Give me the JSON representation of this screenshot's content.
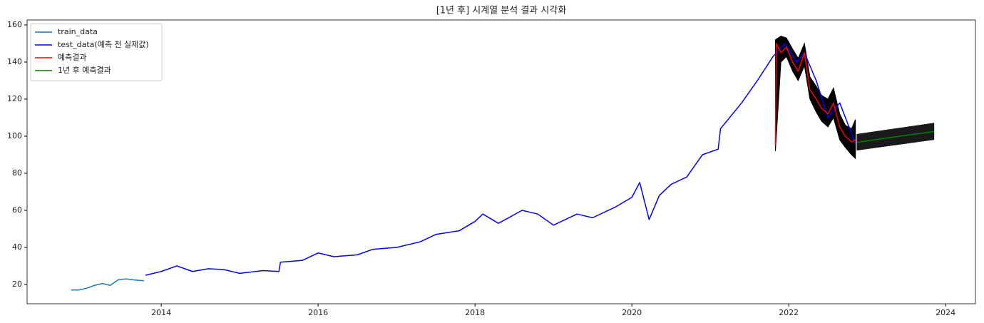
{
  "chart_data": {
    "type": "line",
    "title": "[1년 후] 시계열 분석 결과 시각화",
    "xlim": [
      2012.29,
      2024.38
    ],
    "xticks": [
      2014,
      2016,
      2018,
      2020,
      2022,
      2024
    ],
    "ylim": [
      9.6,
      162.7
    ],
    "yticks": [
      20,
      40,
      60,
      80,
      100,
      120,
      140,
      160
    ],
    "legend": "upper left",
    "series": [
      {
        "name": "train_data",
        "color": "#1f77b4",
        "x": [
          2012.85,
          2012.95,
          2013.05,
          2013.15,
          2013.25,
          2013.35,
          2013.45,
          2013.55,
          2013.65,
          2013.78
        ],
        "values": [
          17,
          17,
          18,
          19.5,
          20.5,
          19.5,
          22.5,
          23,
          22.5,
          22
        ]
      },
      {
        "name": "test_data(예측 전 실제값)",
        "color": "#0000ff",
        "x": [
          2013.8,
          2014.0,
          2014.2,
          2014.4,
          2014.6,
          2014.8,
          2015.0,
          2015.3,
          2015.5,
          2015.52,
          2015.8,
          2016.0,
          2016.2,
          2016.5,
          2016.7,
          2017.0,
          2017.3,
          2017.5,
          2017.8,
          2018.0,
          2018.1,
          2018.3,
          2018.6,
          2018.8,
          2019.0,
          2019.3,
          2019.5,
          2019.8,
          2020.0,
          2020.1,
          2020.22,
          2020.35,
          2020.5,
          2020.7,
          2020.9,
          2021.1,
          2021.13,
          2021.4,
          2021.6,
          2021.8,
          2021.95,
          2022.1,
          2022.2,
          2022.35,
          2022.5,
          2022.65,
          2022.85
        ],
        "values": [
          25,
          27,
          30,
          27,
          28.5,
          28,
          26,
          27.5,
          27,
          32,
          33,
          37,
          35,
          36,
          39,
          40,
          43,
          47,
          49,
          54,
          58,
          53,
          60,
          58,
          52,
          58,
          56,
          62,
          67,
          75,
          55,
          68,
          74,
          78,
          90,
          93,
          104,
          118,
          130,
          143,
          150,
          140,
          145,
          130,
          110,
          118,
          96
        ]
      },
      {
        "name": "예측결과",
        "color": "#ff0000",
        "x": [
          2021.83,
          2021.84,
          2021.9,
          2021.97,
          2022.05,
          2022.12,
          2022.2,
          2022.27,
          2022.35,
          2022.42,
          2022.5,
          2022.57,
          2022.65,
          2022.72,
          2022.8,
          2022.85
        ],
        "values": [
          95,
          150,
          145,
          148,
          140,
          135,
          145,
          125,
          120,
          115,
          112,
          118,
          105,
          100,
          97,
          98
        ]
      },
      {
        "name": "1년 후 예측결과",
        "color": "#008000",
        "x": [
          2022.87,
          2023.35,
          2023.85
        ],
        "values": [
          96.7,
          99.6,
          102.5
        ]
      }
    ],
    "bands": [
      {
        "color": "#000000",
        "x": [
          2021.83,
          2021.9,
          2021.97,
          2022.05,
          2022.12,
          2022.2,
          2022.27,
          2022.35,
          2022.42,
          2022.5,
          2022.57,
          2022.65,
          2022.72,
          2022.8,
          2022.85
        ],
        "lower": [
          92,
          140,
          143,
          135,
          130,
          138,
          120,
          113,
          108,
          105,
          110,
          98,
          94,
          90,
          88
        ],
        "upper": [
          152,
          154,
          153,
          147,
          142,
          150,
          132,
          127,
          122,
          120,
          126,
          112,
          106,
          104,
          109
        ]
      },
      {
        "color": "#1a1a1a",
        "x": [
          2022.87,
          2023.85
        ],
        "lower": [
          92.5,
          98.2
        ],
        "upper": [
          101,
          107
        ]
      }
    ]
  }
}
